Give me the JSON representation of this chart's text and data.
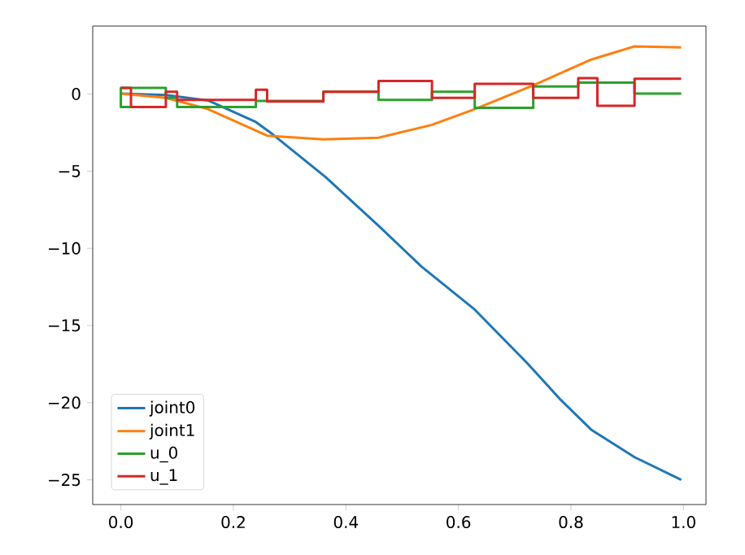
{
  "chart_data": {
    "type": "line",
    "xlim": [
      -0.05,
      1.04
    ],
    "ylim": [
      -26.6,
      4.4
    ],
    "xticks": [
      {
        "value": 0,
        "label": "0.0"
      },
      {
        "value": 0.2,
        "label": "0.2"
      },
      {
        "value": 0.4,
        "label": "0.4"
      },
      {
        "value": 0.6,
        "label": "0.6"
      },
      {
        "value": 0.8,
        "label": "0.8"
      },
      {
        "value": 1.0,
        "label": "1.0"
      }
    ],
    "yticks": [
      {
        "value": -25,
        "label": "−25"
      },
      {
        "value": -20,
        "label": "−20"
      },
      {
        "value": -15,
        "label": "−15"
      },
      {
        "value": -10,
        "label": "−10"
      },
      {
        "value": -5,
        "label": "−5"
      },
      0
    ],
    "legend": "bottom left",
    "series": [
      {
        "name": "joint0",
        "color": "#1f77b4",
        "x": [
          0,
          0.08,
          0.155,
          0.24,
          0.269,
          0.364,
          0.458,
          0.534,
          0.629,
          0.723,
          0.78,
          0.837,
          0.913,
          0.996
        ],
        "values": [
          0.03,
          -0.07,
          -0.42,
          -1.82,
          -2.59,
          -5.39,
          -8.54,
          -11.17,
          -13.97,
          -17.47,
          -19.75,
          -21.78,
          -23.53,
          -25.0
        ]
      },
      {
        "name": "joint1",
        "color": "#ff7f0e",
        "x": [
          0,
          0.08,
          0.155,
          0.26,
          0.36,
          0.458,
          0.553,
          0.629,
          0.733,
          0.837,
          0.913,
          0.996
        ],
        "values": [
          0.03,
          -0.25,
          -0.98,
          -2.7,
          -2.94,
          -2.84,
          -2.0,
          -0.98,
          0.56,
          2.24,
          3.08,
          3.01
        ]
      },
      {
        "name": "u_0",
        "color": "#2ca02c",
        "x": [
          0.018,
          0,
          0,
          0.08,
          0.08,
          0.1,
          0.1,
          0.24,
          0.24,
          0.36,
          0.36,
          0.458,
          0.458,
          0.553,
          0.553,
          0.629,
          0.629,
          0.733,
          0.733,
          0.813,
          0.813,
          0.913,
          0.913,
          0.996
        ],
        "values": [
          -0.84,
          -0.84,
          0.39,
          0.39,
          -0.25,
          -0.25,
          -0.84,
          -0.84,
          -0.45,
          -0.45,
          0.14,
          0.14,
          -0.39,
          -0.39,
          0.14,
          0.14,
          -0.9,
          -0.9,
          0.49,
          0.49,
          0.73,
          0.73,
          0.03,
          0.03
        ]
      },
      {
        "name": "u_1",
        "color": "#d62728",
        "x": [
          0,
          0.018,
          0.018,
          0.08,
          0.08,
          0.1,
          0.1,
          0.24,
          0.24,
          0.26,
          0.26,
          0.36,
          0.36,
          0.458,
          0.458,
          0.553,
          0.553,
          0.629,
          0.629,
          0.733,
          0.733,
          0.813,
          0.813,
          0.847,
          0.847,
          0.913,
          0.913,
          0.996
        ],
        "values": [
          0.39,
          0.39,
          -0.84,
          -0.84,
          0.14,
          0.14,
          -0.39,
          -0.39,
          0.28,
          0.28,
          -0.49,
          -0.49,
          0.14,
          0.14,
          0.84,
          0.84,
          -0.25,
          -0.25,
          0.66,
          0.66,
          -0.25,
          -0.25,
          1.02,
          1.02,
          -0.77,
          -0.77,
          0.98,
          0.98
        ]
      }
    ]
  }
}
